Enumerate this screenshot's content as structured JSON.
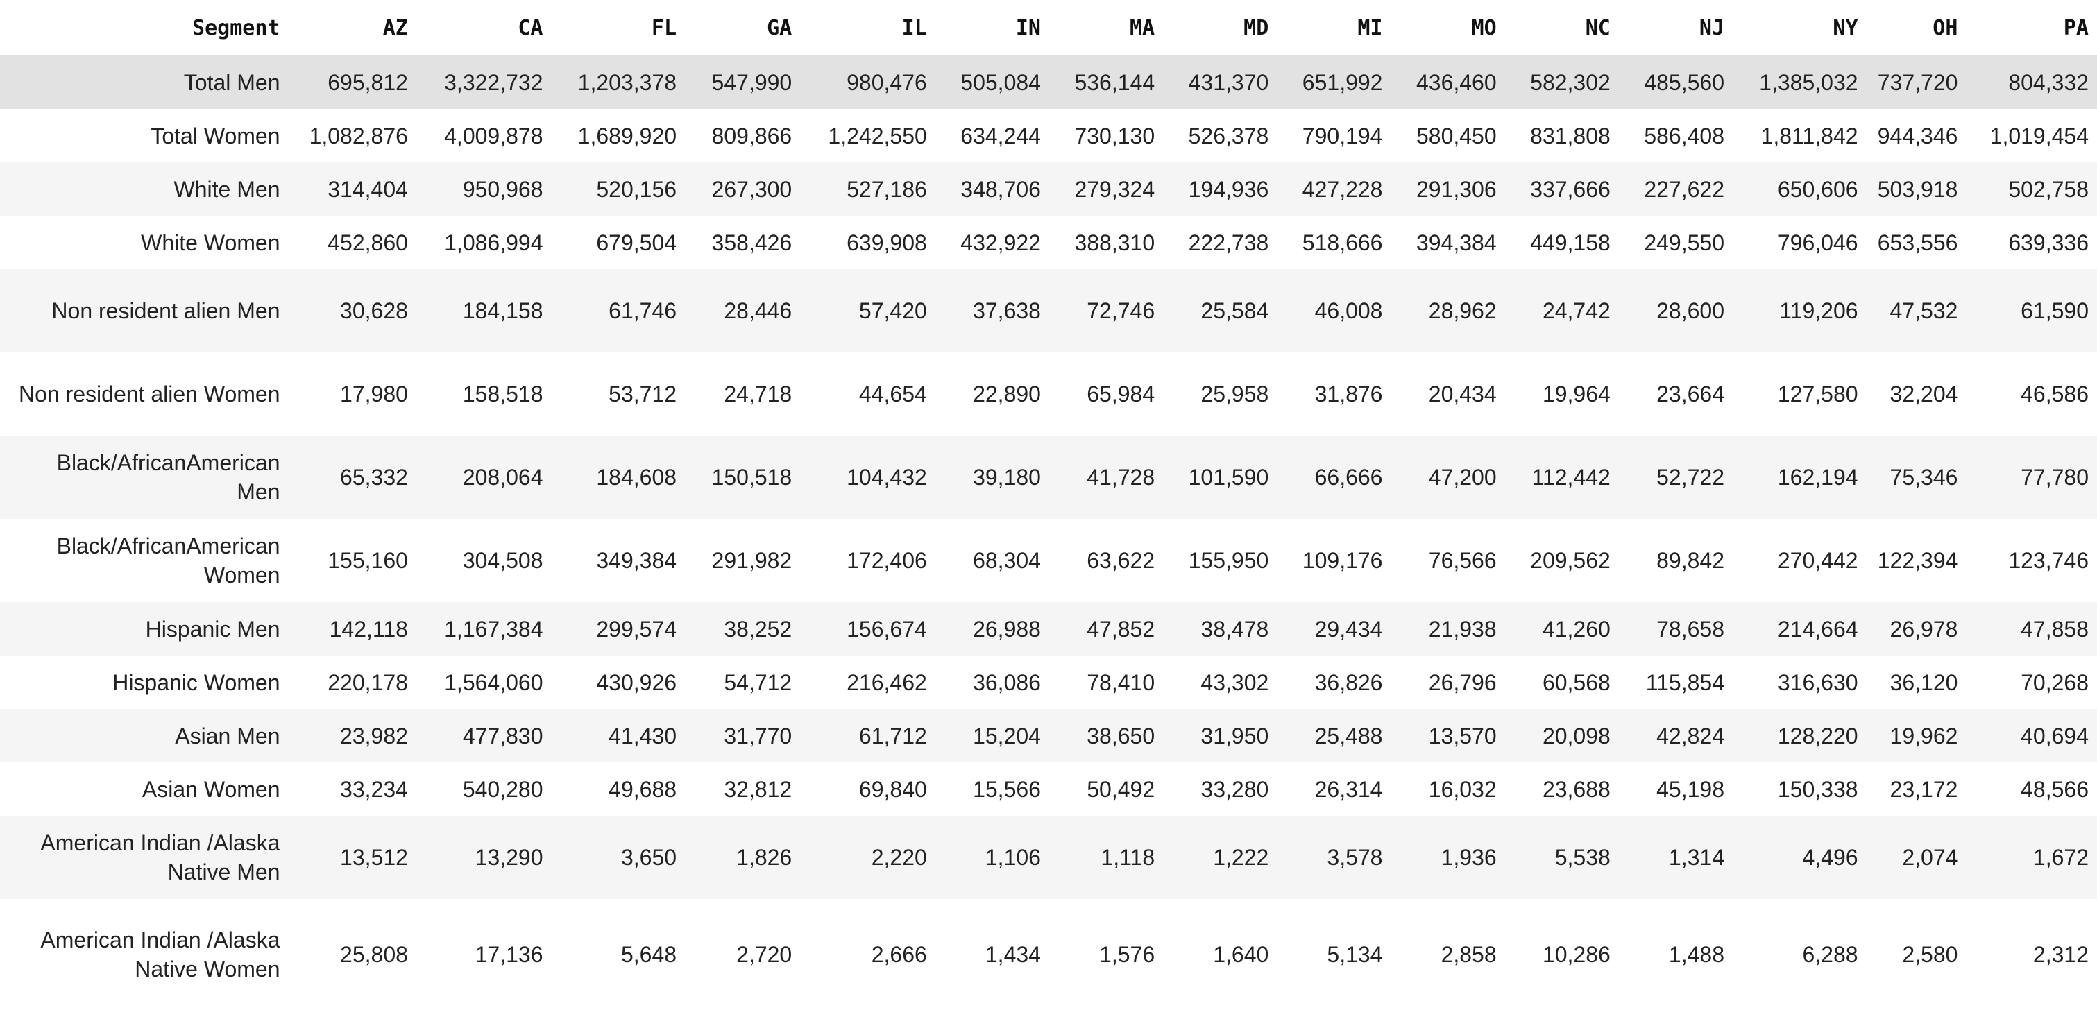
{
  "table": {
    "columns": [
      "Segment",
      "AZ",
      "CA",
      "FL",
      "GA",
      "IL",
      "IN",
      "MA",
      "MD",
      "MI",
      "MO",
      "NC",
      "NJ",
      "NY",
      "OH",
      "PA"
    ],
    "rows": [
      {
        "label": "Total Men",
        "values": [
          "695,812",
          "3,322,732",
          "1,203,378",
          "547,990",
          "980,476",
          "505,084",
          "536,144",
          "431,370",
          "651,992",
          "436,460",
          "582,302",
          "485,560",
          "1,385,032",
          "737,720",
          "804,332"
        ]
      },
      {
        "label": "Total Women",
        "values": [
          "1,082,876",
          "4,009,878",
          "1,689,920",
          "809,866",
          "1,242,550",
          "634,244",
          "730,130",
          "526,378",
          "790,194",
          "580,450",
          "831,808",
          "586,408",
          "1,811,842",
          "944,346",
          "1,019,454"
        ]
      },
      {
        "label": "White Men",
        "values": [
          "314,404",
          "950,968",
          "520,156",
          "267,300",
          "527,186",
          "348,706",
          "279,324",
          "194,936",
          "427,228",
          "291,306",
          "337,666",
          "227,622",
          "650,606",
          "503,918",
          "502,758"
        ]
      },
      {
        "label": "White Women",
        "values": [
          "452,860",
          "1,086,994",
          "679,504",
          "358,426",
          "639,908",
          "432,922",
          "388,310",
          "222,738",
          "518,666",
          "394,384",
          "449,158",
          "249,550",
          "796,046",
          "653,556",
          "639,336"
        ]
      },
      {
        "label": "Non resident alien Men",
        "values": [
          "30,628",
          "184,158",
          "61,746",
          "28,446",
          "57,420",
          "37,638",
          "72,746",
          "25,584",
          "46,008",
          "28,962",
          "24,742",
          "28,600",
          "119,206",
          "47,532",
          "61,590"
        ]
      },
      {
        "label": "Non resident alien Women",
        "values": [
          "17,980",
          "158,518",
          "53,712",
          "24,718",
          "44,654",
          "22,890",
          "65,984",
          "25,958",
          "31,876",
          "20,434",
          "19,964",
          "23,664",
          "127,580",
          "32,204",
          "46,586"
        ]
      },
      {
        "label": "Black/AfricanAmerican Men",
        "values": [
          "65,332",
          "208,064",
          "184,608",
          "150,518",
          "104,432",
          "39,180",
          "41,728",
          "101,590",
          "66,666",
          "47,200",
          "112,442",
          "52,722",
          "162,194",
          "75,346",
          "77,780"
        ]
      },
      {
        "label": "Black/AfricanAmerican Women",
        "values": [
          "155,160",
          "304,508",
          "349,384",
          "291,982",
          "172,406",
          "68,304",
          "63,622",
          "155,950",
          "109,176",
          "76,566",
          "209,562",
          "89,842",
          "270,442",
          "122,394",
          "123,746"
        ]
      },
      {
        "label": "Hispanic Men",
        "values": [
          "142,118",
          "1,167,384",
          "299,574",
          "38,252",
          "156,674",
          "26,988",
          "47,852",
          "38,478",
          "29,434",
          "21,938",
          "41,260",
          "78,658",
          "214,664",
          "26,978",
          "47,858"
        ]
      },
      {
        "label": "Hispanic Women",
        "values": [
          "220,178",
          "1,564,060",
          "430,926",
          "54,712",
          "216,462",
          "36,086",
          "78,410",
          "43,302",
          "36,826",
          "26,796",
          "60,568",
          "115,854",
          "316,630",
          "36,120",
          "70,268"
        ]
      },
      {
        "label": "Asian Men",
        "values": [
          "23,982",
          "477,830",
          "41,430",
          "31,770",
          "61,712",
          "15,204",
          "38,650",
          "31,950",
          "25,488",
          "13,570",
          "20,098",
          "42,824",
          "128,220",
          "19,962",
          "40,694"
        ]
      },
      {
        "label": "Asian Women",
        "values": [
          "33,234",
          "540,280",
          "49,688",
          "32,812",
          "69,840",
          "15,566",
          "50,492",
          "33,280",
          "26,314",
          "16,032",
          "23,688",
          "45,198",
          "150,338",
          "23,172",
          "48,566"
        ]
      },
      {
        "label": "American Indian /Alaska Native Men",
        "values": [
          "13,512",
          "13,290",
          "3,650",
          "1,826",
          "2,220",
          "1,106",
          "1,118",
          "1,222",
          "3,578",
          "1,936",
          "5,538",
          "1,314",
          "4,496",
          "2,074",
          "1,672"
        ]
      },
      {
        "label": "American Indian /Alaska Native Women",
        "values": [
          "25,808",
          "17,136",
          "5,648",
          "2,720",
          "2,666",
          "1,434",
          "1,576",
          "1,640",
          "5,134",
          "2,858",
          "10,286",
          "1,488",
          "6,288",
          "2,580",
          "2,312"
        ]
      }
    ]
  },
  "colors": {
    "hover_row": "#e2e2e2",
    "stripe_row": "#f5f5f5",
    "background": "#ffffff",
    "text": "#222222"
  }
}
